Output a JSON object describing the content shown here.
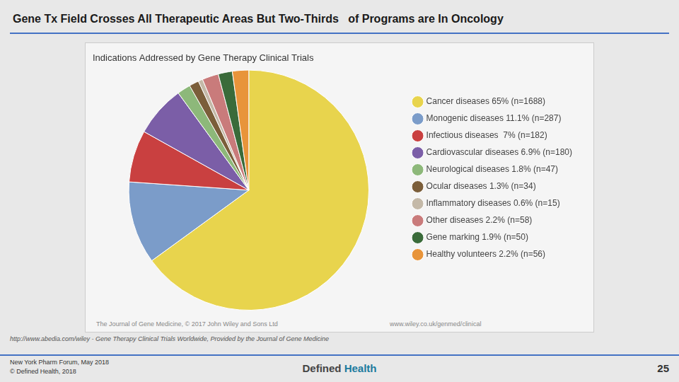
{
  "chart_data": {
    "type": "pie",
    "title": "Gene Tx Field Crosses All Therapeutic Areas But Two-Thirds   of Programs are In Oncology",
    "subtitle": "Indications Addressed by Gene Therapy Clinical Trials",
    "categories": [
      "Cancer diseases 65% (n=1688)",
      "Monogenic diseases 11.1% (n=287)",
      "Infectious diseases  7% (n=182)",
      "Cardiovascular diseases 6.9% (n=180)",
      "Neurological diseases 1.8% (n=47)",
      "Ocular diseases 1.3% (n=34)",
      "Inflammatory diseases 0.6% (n=15)",
      "Other diseases 2.2% (n=58)",
      "Gene marking 1.9% (n=50)",
      "Healthy volunteers 2.2% (n=56)"
    ],
    "values": [
      65.0,
      11.1,
      7.0,
      6.9,
      1.8,
      1.3,
      0.6,
      2.2,
      1.9,
      2.2
    ],
    "colors": [
      "#E8D44D",
      "#7B9CC9",
      "#C94040",
      "#7B5EA7",
      "#8DB87A",
      "#7B5E3A",
      "#C4B9A8",
      "#C97B7B",
      "#3A6B3A",
      "#E8943A"
    ],
    "legend": "right",
    "annotations": {
      "footer_left": "The Journal of Gene Medicine, © 2017 John Wiley and Sons Ltd",
      "footer_right": "www.wiley.co.uk/genmed/clinical",
      "source": "http://www.abedia.com/wiley - Gene Therapy Clinical Trials Worldwide, Provided by the Journal of Gene Medicine",
      "bottom_left": "New York Pharm Forum, May 2018\n© Defined Health, 2018",
      "logo": [
        "Defined",
        "Health"
      ],
      "page_number": "25"
    }
  }
}
